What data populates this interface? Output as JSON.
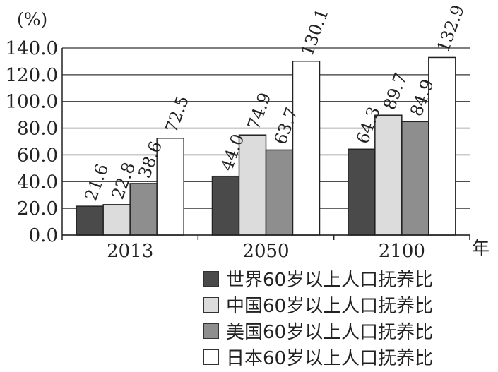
{
  "chart_data": {
    "type": "bar",
    "ylabel": "(%)",
    "xlabel": "年",
    "ylim": [
      0,
      140
    ],
    "ytick_step": 20,
    "grid": true,
    "legend_position": "bottom-right",
    "categories": [
      "2013",
      "2050",
      "2100"
    ],
    "series": [
      {
        "name": "世界60岁以上人口抚养比",
        "values": [
          21.6,
          44.0,
          64.3
        ],
        "value_labels": [
          "21.6",
          "44.0",
          "64.3"
        ],
        "color": "#4a4a4a"
      },
      {
        "name": "中国60岁以上人口抚养比",
        "values": [
          22.8,
          74.9,
          89.7
        ],
        "value_labels": [
          "22.8",
          "74.9",
          "89.7"
        ],
        "color": "#dcdcdc"
      },
      {
        "name": "美国60岁以上人口抚养比",
        "values": [
          38.6,
          63.7,
          84.9
        ],
        "value_labels": [
          "38.6",
          "63.7",
          "84.9"
        ],
        "color": "#8e8e8e"
      },
      {
        "name": "日本60岁以上人口抚养比",
        "values": [
          72.5,
          130.1,
          132.9
        ],
        "value_labels": [
          "72.5",
          "130.1",
          "132.9"
        ],
        "color": "#ffffff"
      }
    ]
  }
}
